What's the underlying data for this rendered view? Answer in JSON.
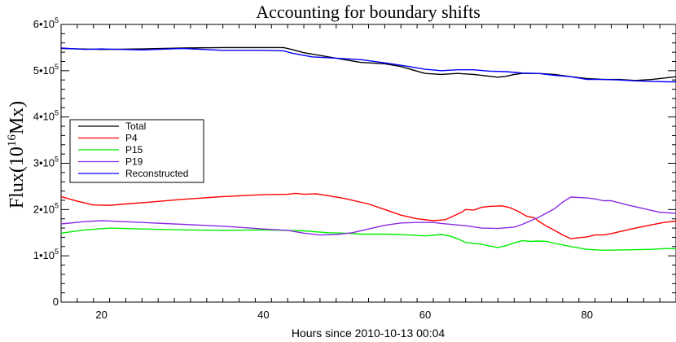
{
  "chart_data": {
    "type": "line",
    "title": "Accounting for boundary shifts",
    "xlabel": "Hours since 2010-10-13 00:04",
    "ylabel_base": "Flux(10",
    "ylabel_exp": "16",
    "ylabel_end": "Mx)",
    "xlim": [
      15,
      91
    ],
    "ylim": [
      0,
      600000
    ],
    "xticks": [
      20,
      40,
      60,
      80
    ],
    "yticks": [
      {
        "value": 0,
        "base": "0",
        "exp": ""
      },
      {
        "value": 100000,
        "base": "1•10",
        "exp": "5"
      },
      {
        "value": 200000,
        "base": "2•10",
        "exp": "5"
      },
      {
        "value": 300000,
        "base": "3•10",
        "exp": "5"
      },
      {
        "value": 400000,
        "base": "4•10",
        "exp": "5"
      },
      {
        "value": 500000,
        "base": "5•10",
        "exp": "5"
      },
      {
        "value": 600000,
        "base": "6•10",
        "exp": "5"
      }
    ],
    "legend_position": "left-middle",
    "series": [
      {
        "name": "Total",
        "color": "#000000",
        "points": [
          [
            15,
            548000
          ],
          [
            20,
            546000
          ],
          [
            25,
            547000
          ],
          [
            30,
            549000
          ],
          [
            35,
            550000
          ],
          [
            40,
            550000
          ],
          [
            42.5,
            550000
          ],
          [
            43.5,
            546000
          ],
          [
            45,
            539000
          ],
          [
            47,
            533000
          ],
          [
            50,
            524000
          ],
          [
            52,
            518000
          ],
          [
            55,
            515000
          ],
          [
            57,
            509000
          ],
          [
            58,
            504000
          ],
          [
            60,
            494000
          ],
          [
            62,
            492000
          ],
          [
            64,
            494000
          ],
          [
            66,
            492000
          ],
          [
            68,
            488000
          ],
          [
            69,
            486000
          ],
          [
            70,
            488000
          ],
          [
            71,
            492000
          ],
          [
            72,
            494000
          ],
          [
            74,
            494000
          ],
          [
            76,
            492000
          ],
          [
            78,
            487000
          ],
          [
            80,
            483000
          ],
          [
            82,
            481000
          ],
          [
            84,
            481000
          ],
          [
            85,
            480000
          ],
          [
            86,
            479000
          ],
          [
            88,
            481000
          ],
          [
            89.5,
            484000
          ],
          [
            91,
            487000
          ]
        ]
      },
      {
        "name": "P4",
        "color": "#ff0000",
        "points": [
          [
            15,
            228000
          ],
          [
            17,
            218000
          ],
          [
            19,
            210000
          ],
          [
            21,
            209000
          ],
          [
            23,
            212000
          ],
          [
            26,
            216000
          ],
          [
            30,
            222000
          ],
          [
            35,
            228000
          ],
          [
            40,
            232000
          ],
          [
            43,
            233000
          ],
          [
            44,
            235000
          ],
          [
            45,
            233000
          ],
          [
            46.5,
            234000
          ],
          [
            48,
            230000
          ],
          [
            50,
            224000
          ],
          [
            53,
            212000
          ],
          [
            55,
            200000
          ],
          [
            57,
            188000
          ],
          [
            59,
            180000
          ],
          [
            61,
            176000
          ],
          [
            62.5,
            178000
          ],
          [
            63.5,
            186000
          ],
          [
            64.5,
            194000
          ],
          [
            65,
            200000
          ],
          [
            66,
            199000
          ],
          [
            67,
            205000
          ],
          [
            68,
            207000
          ],
          [
            69.5,
            208000
          ],
          [
            70.5,
            204000
          ],
          [
            71.5,
            196000
          ],
          [
            72.5,
            186000
          ],
          [
            73.5,
            182000
          ],
          [
            74,
            175000
          ],
          [
            75,
            164000
          ],
          [
            76,
            155000
          ],
          [
            77,
            145000
          ],
          [
            78,
            137000
          ],
          [
            80,
            141000
          ],
          [
            81,
            145000
          ],
          [
            82,
            145000
          ],
          [
            83,
            148000
          ],
          [
            84,
            152000
          ],
          [
            86,
            160000
          ],
          [
            88,
            167000
          ],
          [
            89.5,
            172000
          ],
          [
            91,
            175000
          ]
        ]
      },
      {
        "name": "P15",
        "color": "#00ee00",
        "points": [
          [
            15,
            149000
          ],
          [
            18,
            156000
          ],
          [
            21,
            160000
          ],
          [
            25,
            158000
          ],
          [
            30,
            156000
          ],
          [
            35,
            155000
          ],
          [
            40,
            156000
          ],
          [
            45,
            154000
          ],
          [
            48,
            150000
          ],
          [
            50,
            149000
          ],
          [
            52,
            147000
          ],
          [
            55,
            147000
          ],
          [
            58,
            145000
          ],
          [
            60,
            143000
          ],
          [
            62,
            146000
          ],
          [
            63,
            143000
          ],
          [
            64,
            137000
          ],
          [
            65,
            129000
          ],
          [
            66,
            127000
          ],
          [
            67,
            125000
          ],
          [
            68,
            121000
          ],
          [
            69,
            118000
          ],
          [
            70,
            122000
          ],
          [
            71,
            128000
          ],
          [
            72,
            133000
          ],
          [
            73,
            131000
          ],
          [
            74,
            132000
          ],
          [
            75,
            131000
          ],
          [
            76,
            127000
          ],
          [
            78,
            120000
          ],
          [
            80,
            114000
          ],
          [
            82,
            112000
          ],
          [
            85,
            113000
          ],
          [
            88,
            114000
          ],
          [
            90,
            116000
          ],
          [
            91,
            115000
          ]
        ]
      },
      {
        "name": "P19",
        "color": "#8a2be2",
        "points": [
          [
            15,
            169000
          ],
          [
            18,
            174000
          ],
          [
            20,
            176000
          ],
          [
            25,
            172000
          ],
          [
            30,
            168000
          ],
          [
            35,
            164000
          ],
          [
            40,
            158000
          ],
          [
            43,
            155000
          ],
          [
            45,
            149000
          ],
          [
            47,
            145000
          ],
          [
            49,
            146000
          ],
          [
            51,
            150000
          ],
          [
            53,
            158000
          ],
          [
            55,
            166000
          ],
          [
            57,
            171000
          ],
          [
            59,
            172000
          ],
          [
            61,
            172000
          ],
          [
            62,
            170000
          ],
          [
            65,
            165000
          ],
          [
            67,
            160000
          ],
          [
            69,
            159000
          ],
          [
            71,
            162000
          ],
          [
            72,
            168000
          ],
          [
            74,
            183000
          ],
          [
            76,
            202000
          ],
          [
            77,
            216000
          ],
          [
            78,
            227000
          ],
          [
            80,
            225000
          ],
          [
            81,
            223000
          ],
          [
            82,
            219000
          ],
          [
            83,
            219000
          ],
          [
            85,
            210000
          ],
          [
            87,
            202000
          ],
          [
            89,
            194000
          ],
          [
            91,
            192000
          ]
        ]
      },
      {
        "name": "Reconstructed",
        "color": "#0000ff",
        "points": [
          [
            15,
            549000
          ],
          [
            18,
            546000
          ],
          [
            20,
            547000
          ],
          [
            25,
            545000
          ],
          [
            30,
            548000
          ],
          [
            35,
            544000
          ],
          [
            40,
            544000
          ],
          [
            42.5,
            543000
          ],
          [
            43.5,
            538000
          ],
          [
            46,
            530000
          ],
          [
            50,
            526000
          ],
          [
            52,
            524000
          ],
          [
            55,
            517000
          ],
          [
            58,
            509000
          ],
          [
            60,
            503000
          ],
          [
            62,
            500000
          ],
          [
            64,
            502000
          ],
          [
            66,
            502000
          ],
          [
            68,
            499000
          ],
          [
            70,
            498000
          ],
          [
            72,
            495000
          ],
          [
            74,
            494000
          ],
          [
            76,
            490000
          ],
          [
            78,
            487000
          ],
          [
            80,
            481000
          ],
          [
            82,
            481000
          ],
          [
            84,
            480000
          ],
          [
            86,
            478000
          ],
          [
            88,
            477000
          ],
          [
            90,
            476000
          ],
          [
            91,
            476000
          ]
        ]
      }
    ]
  }
}
